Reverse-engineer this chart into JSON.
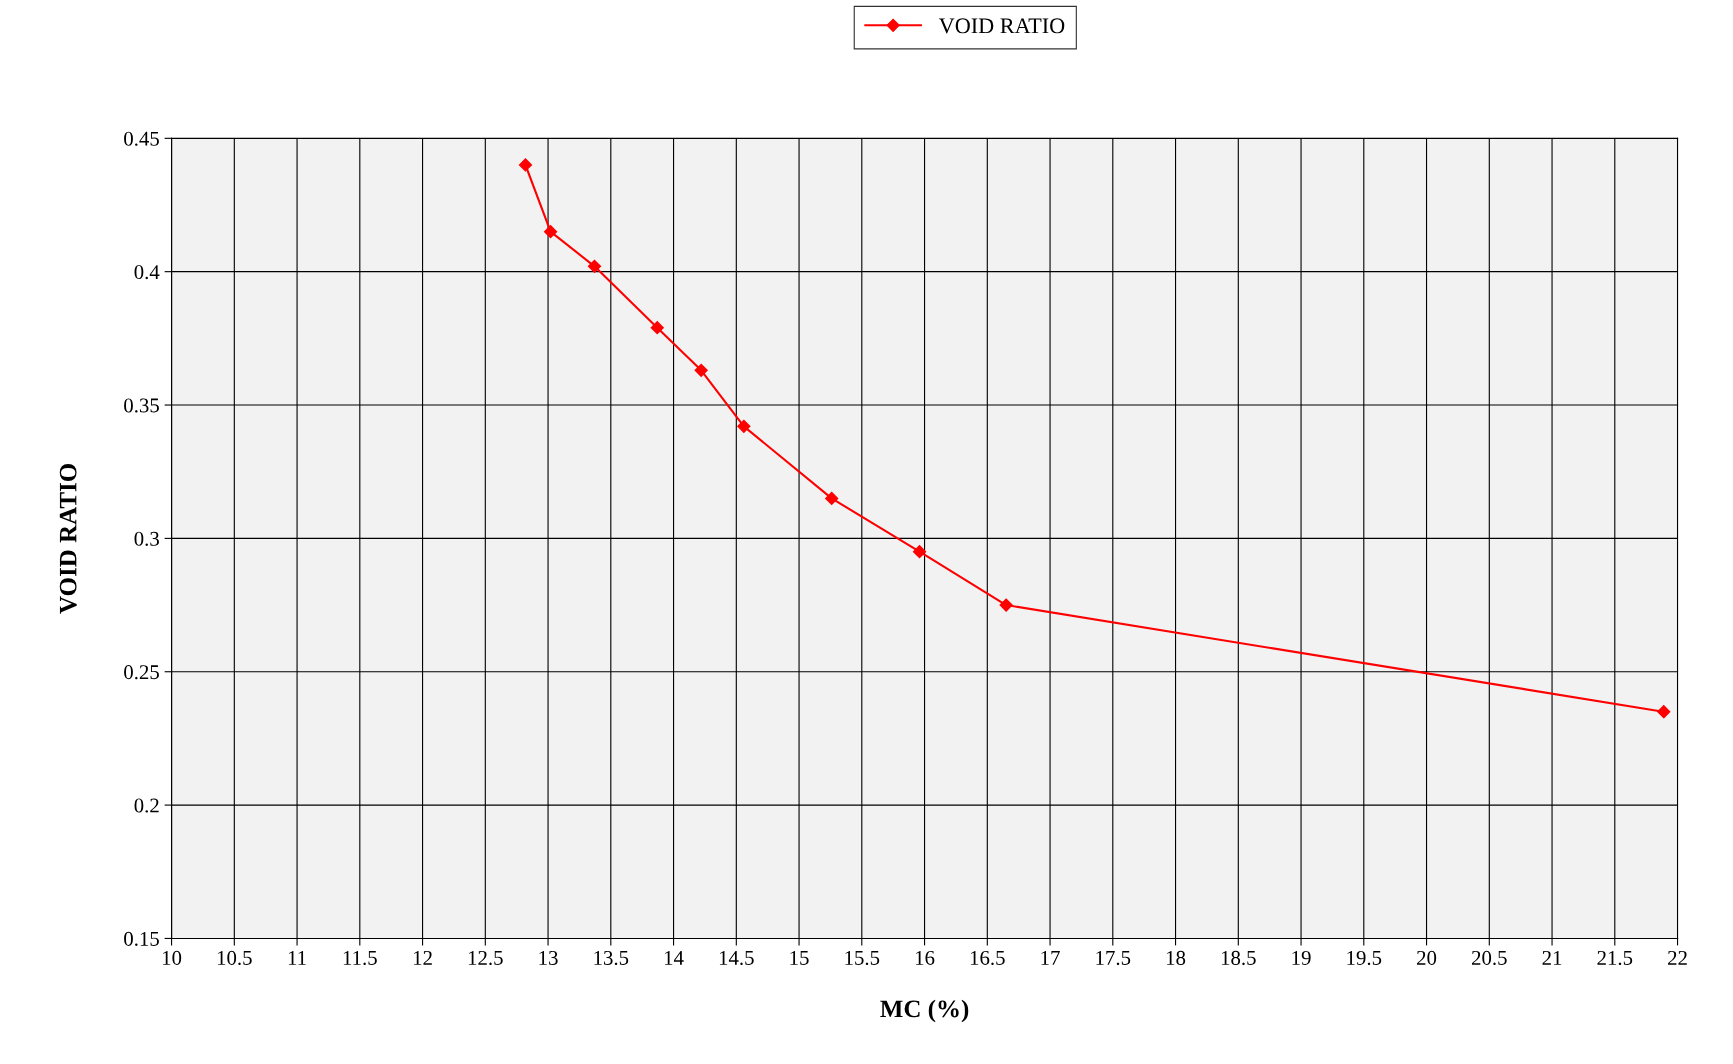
{
  "chart_data": {
    "type": "line",
    "xlabel": "MC (%)",
    "ylabel": "VOID RATIO",
    "x": [
      12.82,
      13.02,
      13.37,
      13.87,
      14.22,
      14.56,
      15.26,
      15.96,
      16.65,
      21.89
    ],
    "series": [
      {
        "name": "VOID RATIO",
        "color": "#ff0000",
        "values": [
          0.44,
          0.415,
          0.402,
          0.379,
          0.363,
          0.342,
          0.315,
          0.295,
          0.275,
          0.235
        ]
      }
    ],
    "xlim": [
      10,
      22
    ],
    "xticks": [
      10,
      10.5,
      11,
      11.5,
      12,
      12.5,
      13,
      13.5,
      14,
      14.5,
      15,
      15.5,
      16,
      16.5,
      17,
      17.5,
      18,
      18.5,
      19,
      19.5,
      20,
      20.5,
      21,
      21.5,
      22
    ],
    "ylim": [
      0.15,
      0.45
    ],
    "yticks": [
      0.15,
      0.2,
      0.25,
      0.3,
      0.35,
      0.4,
      0.45
    ],
    "grid": true,
    "legend": "top",
    "marker": "diamond",
    "line_style": "solid"
  }
}
